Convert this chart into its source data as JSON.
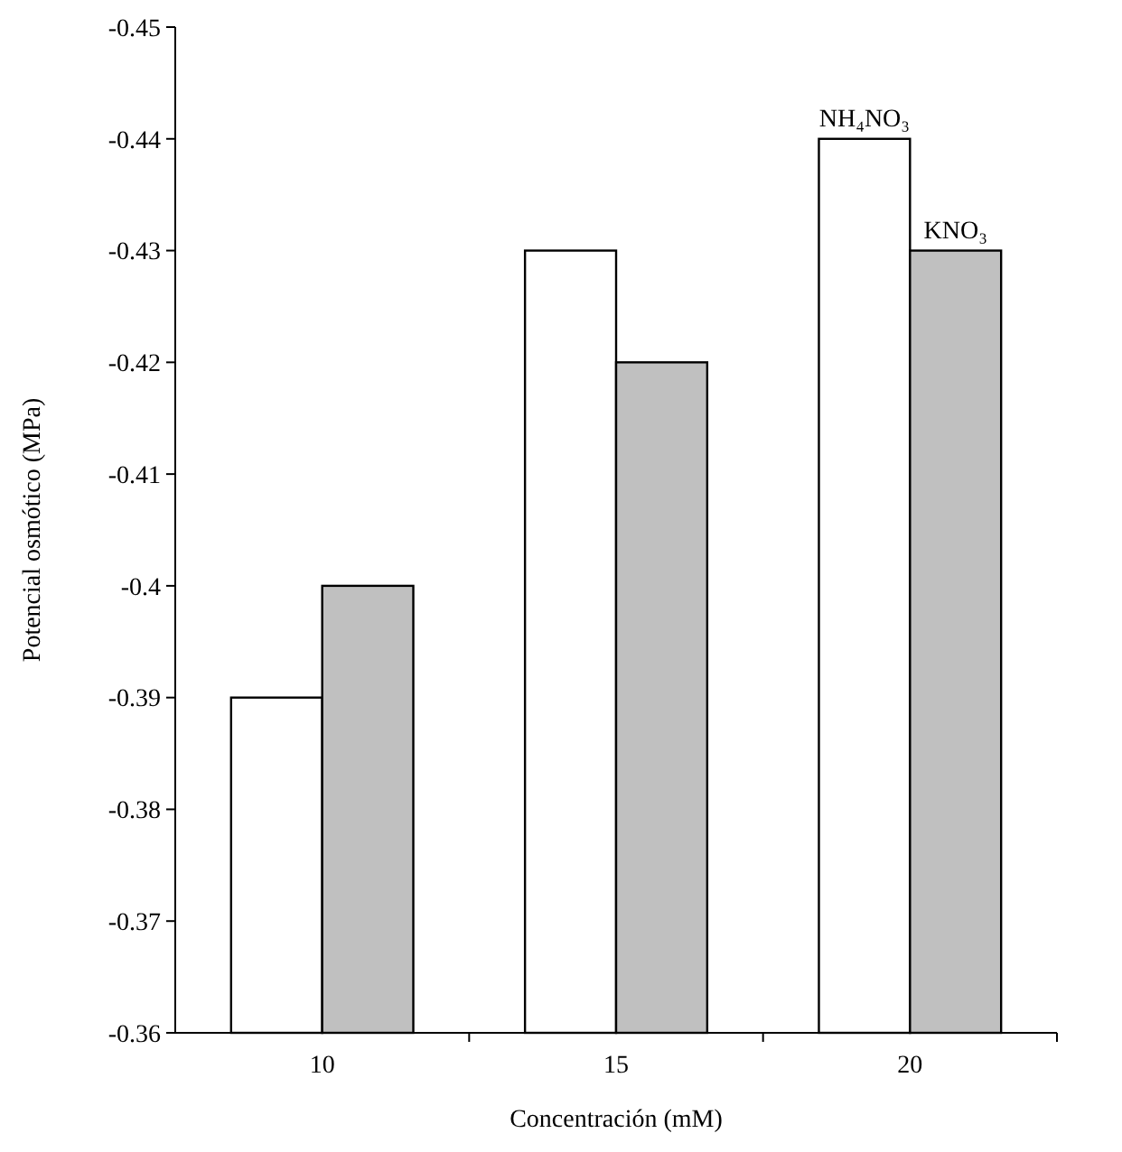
{
  "chart_data": {
    "type": "bar",
    "xlabel": "Concentración (mM)",
    "ylabel": "Potencial osmótico (MPa)",
    "categories": [
      "10",
      "15",
      "20"
    ],
    "series": [
      {
        "name": "NH₄NO₃",
        "color": "#ffffff",
        "values": [
          -0.39,
          -0.43,
          -0.44
        ]
      },
      {
        "name": "KNO₃",
        "color": "#c0c0c0",
        "values": [
          -0.4,
          -0.42,
          -0.43
        ]
      }
    ],
    "ylim": [
      -0.36,
      -0.45
    ],
    "yticks": [
      -0.36,
      -0.37,
      -0.38,
      -0.39,
      -0.4,
      -0.41,
      -0.42,
      -0.43,
      -0.44,
      -0.45
    ]
  }
}
